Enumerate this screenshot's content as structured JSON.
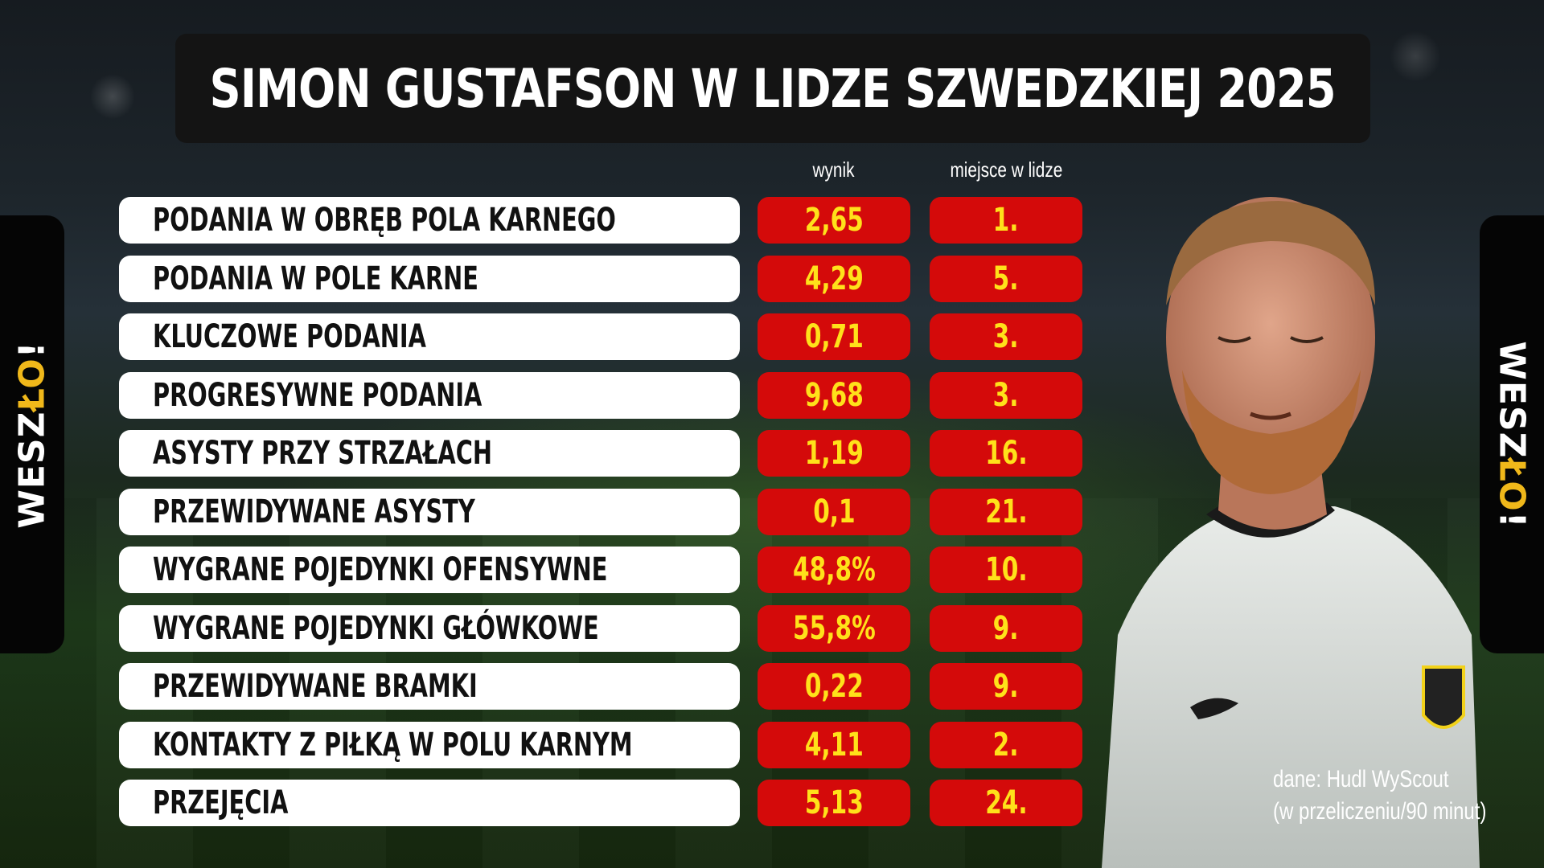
{
  "title": "SIMON GUSTAFSON W LIDZE SZWEDZKIEJ 2025",
  "brand": {
    "logo_text_pre": "WESZ",
    "logo_text_o": "ŁO",
    "logo_text_post": "!"
  },
  "source": {
    "line1": "dane: Hudl WyScout",
    "line2": "(w przeliczeniu/90 minut)"
  },
  "colors": {
    "label_bg": "#ffffff",
    "value_bg": "#d40a0a",
    "value_text": "#ffe11a",
    "title_bg": "#141414"
  },
  "chart_data": {
    "type": "table",
    "title": "SIMON GUSTAFSON W LIDZE SZWEDZKIEJ 2025",
    "columns": [
      "wynik",
      "miejsce w lidze"
    ],
    "rows": [
      {
        "label": "PODANIA W OBRĘB POLA KARNEGO",
        "value": "2,65",
        "rank": "1."
      },
      {
        "label": "PODANIA W POLE KARNE",
        "value": "4,29",
        "rank": "5."
      },
      {
        "label": "KLUCZOWE PODANIA",
        "value": "0,71",
        "rank": "3."
      },
      {
        "label": "PROGRESYWNE PODANIA",
        "value": "9,68",
        "rank": "3."
      },
      {
        "label": "ASYSTY PRZY STRZAŁACH",
        "value": "1,19",
        "rank": "16."
      },
      {
        "label": "PRZEWIDYWANE ASYSTY",
        "value": "0,1",
        "rank": "21."
      },
      {
        "label": "WYGRANE POJEDYNKI OFENSYWNE",
        "value": "48,8%",
        "rank": "10."
      },
      {
        "label": "WYGRANE POJEDYNKI GŁÓWKOWE",
        "value": "55,8%",
        "rank": "9."
      },
      {
        "label": "PRZEWIDYWANE BRAMKI",
        "value": "0,22",
        "rank": "9."
      },
      {
        "label": "KONTAKTY Z PIŁKĄ W POLU KARNYM",
        "value": "4,11",
        "rank": "2."
      },
      {
        "label": "PRZEJĘCIA",
        "value": "5,13",
        "rank": "24."
      }
    ]
  }
}
